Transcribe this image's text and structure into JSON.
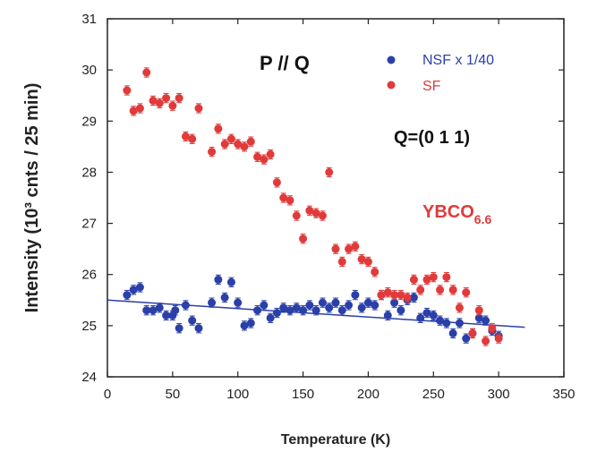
{
  "chart_data": {
    "type": "scatter",
    "xlabel": "Temperature (K)",
    "ylabel": "Intensity (10³ cnts / 25 min)",
    "xlim": [
      0,
      350
    ],
    "ylim": [
      24,
      31
    ],
    "xticks": [
      0,
      50,
      100,
      150,
      200,
      250,
      300,
      350
    ],
    "yticks": [
      24,
      25,
      26,
      27,
      28,
      29,
      30,
      31
    ],
    "legend_position": "top-right",
    "annotations": {
      "panel": "P // Q",
      "q": "Q=(0 1 1)",
      "sample_main": "YBCO",
      "sample_sub": "6.6"
    },
    "series": [
      {
        "name": "NSF x 1/40",
        "color": "#2a3fa8",
        "points": [
          [
            15,
            25.6
          ],
          [
            20,
            25.7
          ],
          [
            25,
            25.75
          ],
          [
            30,
            25.3
          ],
          [
            35,
            25.3
          ],
          [
            40,
            25.35
          ],
          [
            45,
            25.2
          ],
          [
            50,
            25.2
          ],
          [
            52,
            25.3
          ],
          [
            55,
            24.95
          ],
          [
            60,
            25.4
          ],
          [
            65,
            25.1
          ],
          [
            70,
            24.95
          ],
          [
            80,
            25.45
          ],
          [
            85,
            25.9
          ],
          [
            90,
            25.55
          ],
          [
            95,
            25.85
          ],
          [
            100,
            25.45
          ],
          [
            105,
            25.0
          ],
          [
            110,
            25.05
          ],
          [
            115,
            25.3
          ],
          [
            120,
            25.4
          ],
          [
            125,
            25.15
          ],
          [
            130,
            25.25
          ],
          [
            135,
            25.35
          ],
          [
            140,
            25.3
          ],
          [
            145,
            25.35
          ],
          [
            150,
            25.3
          ],
          [
            155,
            25.4
          ],
          [
            160,
            25.3
          ],
          [
            165,
            25.45
          ],
          [
            170,
            25.35
          ],
          [
            175,
            25.45
          ],
          [
            180,
            25.3
          ],
          [
            185,
            25.4
          ],
          [
            190,
            25.6
          ],
          [
            195,
            25.35
          ],
          [
            200,
            25.45
          ],
          [
            205,
            25.4
          ],
          [
            210,
            25.6
          ],
          [
            215,
            25.2
          ],
          [
            220,
            25.45
          ],
          [
            225,
            25.3
          ],
          [
            230,
            25.5
          ],
          [
            235,
            25.55
          ],
          [
            240,
            25.15
          ],
          [
            245,
            25.25
          ],
          [
            250,
            25.2
          ],
          [
            255,
            25.1
          ],
          [
            260,
            25.05
          ],
          [
            265,
            24.85
          ],
          [
            270,
            25.05
          ],
          [
            275,
            24.75
          ],
          [
            280,
            24.85
          ],
          [
            285,
            25.15
          ],
          [
            290,
            25.1
          ],
          [
            295,
            24.9
          ],
          [
            300,
            24.8
          ]
        ],
        "fit_line": [
          [
            0,
            25.5
          ],
          [
            320,
            24.97
          ]
        ]
      },
      {
        "name": "SF",
        "color": "#e03a3a",
        "points": [
          [
            15,
            29.6
          ],
          [
            20,
            29.2
          ],
          [
            25,
            29.25
          ],
          [
            30,
            29.95
          ],
          [
            35,
            29.4
          ],
          [
            40,
            29.35
          ],
          [
            45,
            29.45
          ],
          [
            50,
            29.3
          ],
          [
            55,
            29.45
          ],
          [
            60,
            28.7
          ],
          [
            65,
            28.65
          ],
          [
            70,
            29.25
          ],
          [
            80,
            28.4
          ],
          [
            85,
            28.85
          ],
          [
            90,
            28.55
          ],
          [
            95,
            28.65
          ],
          [
            100,
            28.55
          ],
          [
            105,
            28.5
          ],
          [
            110,
            28.6
          ],
          [
            115,
            28.3
          ],
          [
            120,
            28.25
          ],
          [
            125,
            28.35
          ],
          [
            130,
            27.8
          ],
          [
            135,
            27.5
          ],
          [
            140,
            27.45
          ],
          [
            145,
            27.15
          ],
          [
            150,
            26.7
          ],
          [
            155,
            27.25
          ],
          [
            160,
            27.2
          ],
          [
            165,
            27.15
          ],
          [
            170,
            28.0
          ],
          [
            175,
            26.5
          ],
          [
            180,
            26.25
          ],
          [
            185,
            26.5
          ],
          [
            190,
            26.55
          ],
          [
            195,
            26.3
          ],
          [
            200,
            26.25
          ],
          [
            205,
            26.05
          ],
          [
            210,
            25.6
          ],
          [
            215,
            25.65
          ],
          [
            220,
            25.6
          ],
          [
            225,
            25.6
          ],
          [
            230,
            25.55
          ],
          [
            235,
            25.9
          ],
          [
            240,
            25.7
          ],
          [
            245,
            25.9
          ],
          [
            250,
            25.95
          ],
          [
            255,
            25.7
          ],
          [
            260,
            25.95
          ],
          [
            265,
            25.7
          ],
          [
            270,
            25.35
          ],
          [
            275,
            25.65
          ],
          [
            280,
            24.85
          ],
          [
            285,
            25.3
          ],
          [
            290,
            24.7
          ],
          [
            295,
            24.95
          ],
          [
            300,
            24.75
          ]
        ]
      }
    ]
  }
}
